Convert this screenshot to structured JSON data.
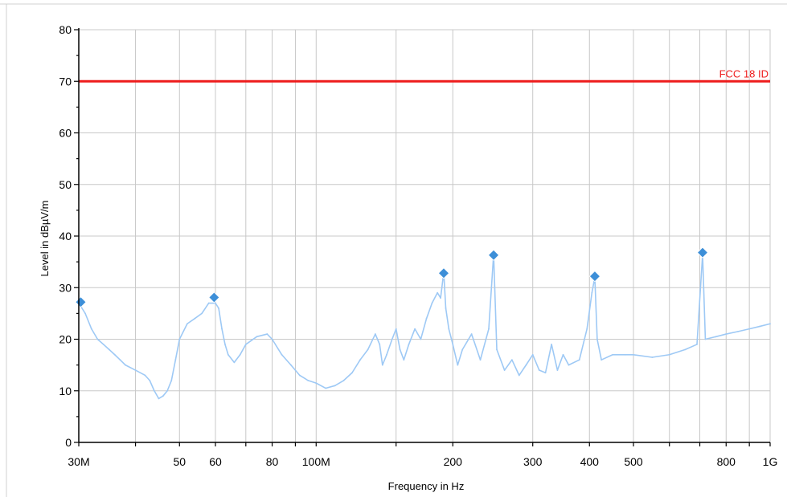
{
  "chart_data": {
    "type": "line",
    "title": "",
    "xlabel": "Frequency in Hz",
    "ylabel": "Level in dBµV/m",
    "x_scale": "log",
    "xlim": [
      30000000,
      1000000000
    ],
    "ylim": [
      0,
      80
    ],
    "grid": true,
    "x_ticks": [
      {
        "value": 30000000,
        "label": "30M"
      },
      {
        "value": 50000000,
        "label": "50"
      },
      {
        "value": 60000000,
        "label": "60"
      },
      {
        "value": 80000000,
        "label": "80"
      },
      {
        "value": 100000000,
        "label": "100M"
      },
      {
        "value": 200000000,
        "label": "200"
      },
      {
        "value": 300000000,
        "label": "300"
      },
      {
        "value": 400000000,
        "label": "400"
      },
      {
        "value": 500000000,
        "label": "500"
      },
      {
        "value": 800000000,
        "label": "800"
      },
      {
        "value": 1000000000,
        "label": "1G"
      }
    ],
    "x_minor_gridlines": [
      40000000,
      70000000,
      90000000,
      150000000,
      600000000,
      700000000,
      900000000
    ],
    "y_ticks": [
      0,
      10,
      20,
      30,
      40,
      50,
      60,
      70,
      80
    ],
    "limit": {
      "name": "FCC 18 ID",
      "value": 70,
      "color": "#ee1c1c"
    },
    "series": [
      {
        "color": "#9ec9f5",
        "points": [
          [
            30000000.0,
            27
          ],
          [
            31000000.0,
            25
          ],
          [
            32000000.0,
            22
          ],
          [
            33000000.0,
            20
          ],
          [
            34000000.0,
            19
          ],
          [
            35000000.0,
            18
          ],
          [
            36000000.0,
            17
          ],
          [
            37000000.0,
            16
          ],
          [
            38000000.0,
            15
          ],
          [
            40000000.0,
            14
          ],
          [
            42000000.0,
            13
          ],
          [
            43000000.0,
            12
          ],
          [
            44000000.0,
            10
          ],
          [
            45000000.0,
            8.5
          ],
          [
            46000000.0,
            9
          ],
          [
            47000000.0,
            10
          ],
          [
            48000000.0,
            12
          ],
          [
            49000000.0,
            16
          ],
          [
            50000000.0,
            20
          ],
          [
            52000000.0,
            23
          ],
          [
            54000000.0,
            24
          ],
          [
            56000000.0,
            25
          ],
          [
            58000000.0,
            27
          ],
          [
            60000000.0,
            27
          ],
          [
            61000000.0,
            26
          ],
          [
            62000000.0,
            22
          ],
          [
            63000000.0,
            19
          ],
          [
            64000000.0,
            17
          ],
          [
            66000000.0,
            15.5
          ],
          [
            68000000.0,
            17
          ],
          [
            70000000.0,
            19
          ],
          [
            74000000.0,
            20.5
          ],
          [
            78000000.0,
            21
          ],
          [
            80000000.0,
            20
          ],
          [
            84000000.0,
            17
          ],
          [
            88000000.0,
            15
          ],
          [
            92000000.0,
            13
          ],
          [
            96000000.0,
            12
          ],
          [
            100000000.0,
            11.5
          ],
          [
            105000000.0,
            10.5
          ],
          [
            110000000.0,
            11
          ],
          [
            115000000.0,
            12
          ],
          [
            120000000.0,
            13.5
          ],
          [
            125000000.0,
            16
          ],
          [
            130000000.0,
            18
          ],
          [
            135000000.0,
            21
          ],
          [
            138000000.0,
            19
          ],
          [
            140000000.0,
            15
          ],
          [
            143000000.0,
            17
          ],
          [
            147000000.0,
            20
          ],
          [
            150000000.0,
            22
          ],
          [
            153000000.0,
            18
          ],
          [
            156000000.0,
            16
          ],
          [
            160000000.0,
            19
          ],
          [
            165000000.0,
            22
          ],
          [
            170000000.0,
            20
          ],
          [
            175000000.0,
            24
          ],
          [
            180000000.0,
            27
          ],
          [
            185000000.0,
            29
          ],
          [
            188000000.0,
            28
          ],
          [
            191000000.0,
            33
          ],
          [
            193000000.0,
            26
          ],
          [
            196000000.0,
            22
          ],
          [
            200000000.0,
            19
          ],
          [
            205000000.0,
            15
          ],
          [
            210000000.0,
            18
          ],
          [
            220000000.0,
            21
          ],
          [
            230000000.0,
            16
          ],
          [
            240000000.0,
            22
          ],
          [
            246000000.0,
            36.5
          ],
          [
            250000000.0,
            18
          ],
          [
            260000000.0,
            14
          ],
          [
            270000000.0,
            16
          ],
          [
            280000000.0,
            13
          ],
          [
            290000000.0,
            15
          ],
          [
            300000000.0,
            17
          ],
          [
            310000000.0,
            14
          ],
          [
            320000000.0,
            13.5
          ],
          [
            330000000.0,
            19
          ],
          [
            340000000.0,
            14
          ],
          [
            350000000.0,
            17
          ],
          [
            360000000.0,
            15
          ],
          [
            380000000.0,
            16
          ],
          [
            395000000.0,
            22
          ],
          [
            405000000.0,
            29
          ],
          [
            411000000.0,
            32
          ],
          [
            416000000.0,
            20
          ],
          [
            425000000.0,
            16
          ],
          [
            450000000.0,
            17
          ],
          [
            480000000.0,
            17
          ],
          [
            500000000.0,
            17
          ],
          [
            550000000.0,
            16.5
          ],
          [
            600000000.0,
            17
          ],
          [
            650000000.0,
            18
          ],
          [
            690000000.0,
            19
          ],
          [
            710000000.0,
            36.5
          ],
          [
            720000000.0,
            20
          ],
          [
            760000000.0,
            20.5
          ],
          [
            800000000.0,
            21
          ],
          [
            850000000.0,
            21.5
          ],
          [
            900000000.0,
            22
          ],
          [
            950000000.0,
            22.5
          ],
          [
            1000000000.0,
            23
          ]
        ]
      }
    ],
    "markers": [
      {
        "x": 30300000,
        "y": 27.2
      },
      {
        "x": 59600000,
        "y": 28.1
      },
      {
        "x": 191000000,
        "y": 32.8
      },
      {
        "x": 246000000,
        "y": 36.3
      },
      {
        "x": 411000000,
        "y": 32.2
      },
      {
        "x": 710000000,
        "y": 36.8
      }
    ],
    "marker_color": "#3d8fd8"
  }
}
